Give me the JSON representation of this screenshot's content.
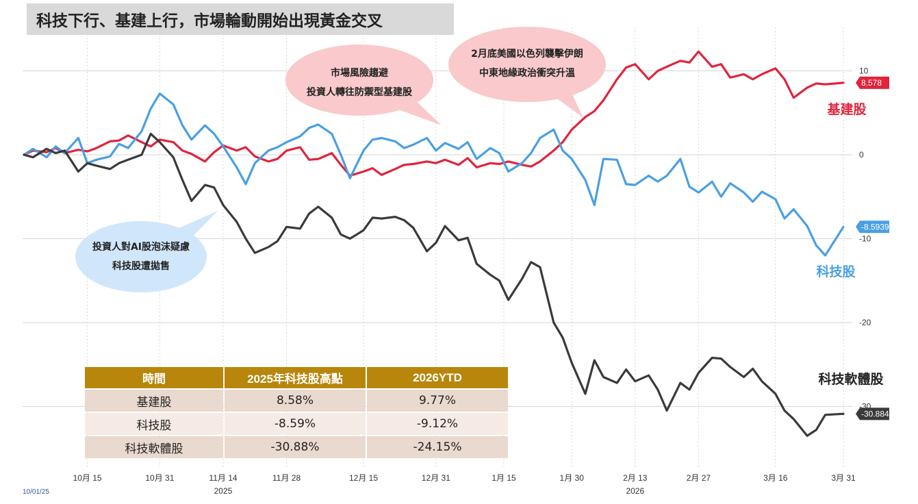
{
  "title": "科技下行、基建上行，市場輪動開始出現黃金交叉",
  "source_date": "10/01/25",
  "colors": {
    "infra": "#e0243c",
    "tech": "#4a9fe3",
    "software": "#3a3a3a",
    "grid": "#d6d6d6",
    "table_header": "#b8860b"
  },
  "annotations": {
    "market": [
      "市場風險趨避",
      "投資人轉往防禦型基建股"
    ],
    "middle_east": [
      "2月底美國以色列襲擊伊朗",
      "中東地緣政治衝突升溫"
    ],
    "ai": [
      "投資人對AI股泡沫疑慮",
      "科技股遭拋售"
    ]
  },
  "table": {
    "headers": [
      "時間",
      "2025年科技股高點",
      "2026YTD"
    ],
    "rows": [
      [
        "基建股",
        "8.58%",
        "9.77%"
      ],
      [
        "科技股",
        "-8.59%",
        "-9.12%"
      ],
      [
        "科技軟體股",
        "-30.88%",
        "-24.15%"
      ]
    ]
  },
  "chart_data": {
    "type": "line",
    "title": "科技下行、基建上行，市場輪動開始出現黃金交叉",
    "ylim": [
      -38,
      18
    ],
    "y_ticks": [
      10,
      0,
      -10,
      -20,
      -30
    ],
    "x_tick_labels": [
      {
        "date": "2025-10-15",
        "label": "10月 15",
        "year": ""
      },
      {
        "date": "2025-10-31",
        "label": "10月 31",
        "year": ""
      },
      {
        "date": "2025-11-14",
        "label": "11月 14",
        "year": "2025"
      },
      {
        "date": "2025-11-28",
        "label": "11月 28",
        "year": ""
      },
      {
        "date": "2025-12-15",
        "label": "12月 15",
        "year": ""
      },
      {
        "date": "2025-12-31",
        "label": "12月 31",
        "year": ""
      },
      {
        "date": "2026-01-15",
        "label": "1月 15",
        "year": ""
      },
      {
        "date": "2026-01-30",
        "label": "1月 30",
        "year": ""
      },
      {
        "date": "2026-02-13",
        "label": "2月 13",
        "year": "2026"
      },
      {
        "date": "2026-02-27",
        "label": "2月 27",
        "year": ""
      },
      {
        "date": "2026-03-16",
        "label": "3月 16",
        "year": ""
      },
      {
        "date": "2026-03-31",
        "label": "3月 31",
        "year": ""
      }
    ],
    "series": [
      {
        "name": "基建股",
        "color": "#e0243c",
        "last_label": "8.578",
        "points": [
          [
            "2025-10-01",
            0
          ],
          [
            "2025-10-03",
            0.5
          ],
          [
            "2025-10-06",
            0.3
          ],
          [
            "2025-10-08",
            0.8
          ],
          [
            "2025-10-10",
            0.2
          ],
          [
            "2025-10-13",
            0.6
          ],
          [
            "2025-10-15",
            0.4
          ],
          [
            "2025-10-17",
            0.8
          ],
          [
            "2025-10-20",
            1.6
          ],
          [
            "2025-10-22",
            1.7
          ],
          [
            "2025-10-24",
            2.3
          ],
          [
            "2025-10-27",
            1.5
          ],
          [
            "2025-10-29",
            1.0
          ],
          [
            "2025-10-31",
            1.8
          ],
          [
            "2025-11-03",
            1.5
          ],
          [
            "2025-11-05",
            0.5
          ],
          [
            "2025-11-07",
            0.1
          ],
          [
            "2025-11-10",
            -0.8
          ],
          [
            "2025-11-12",
            0.3
          ],
          [
            "2025-11-14",
            1.1
          ],
          [
            "2025-11-17",
            0.5
          ],
          [
            "2025-11-19",
            0.9
          ],
          [
            "2025-11-21",
            -0.2
          ],
          [
            "2025-11-24",
            -0.8
          ],
          [
            "2025-11-26",
            -0.5
          ],
          [
            "2025-11-28",
            0.5
          ],
          [
            "2025-12-01",
            0.9
          ],
          [
            "2025-12-03",
            -0.6
          ],
          [
            "2025-12-05",
            -0.5
          ],
          [
            "2025-12-08",
            0.2
          ],
          [
            "2025-12-10",
            -1.2
          ],
          [
            "2025-12-12",
            -2.5
          ],
          [
            "2025-12-15",
            -2.0
          ],
          [
            "2025-12-17",
            -1.6
          ],
          [
            "2025-12-19",
            -2.4
          ],
          [
            "2025-12-22",
            -1.7
          ],
          [
            "2025-12-24",
            -1.2
          ],
          [
            "2025-12-26",
            -1.1
          ],
          [
            "2025-12-29",
            -0.8
          ],
          [
            "2025-12-31",
            -1.0
          ],
          [
            "2026-01-02",
            -0.6
          ],
          [
            "2026-01-05",
            -1.2
          ],
          [
            "2026-01-07",
            -0.4
          ],
          [
            "2026-01-09",
            -1.5
          ],
          [
            "2026-01-12",
            -1.0
          ],
          [
            "2026-01-14",
            -1.1
          ],
          [
            "2026-01-16",
            -0.8
          ],
          [
            "2026-01-19",
            -1.2
          ],
          [
            "2026-01-21",
            -1.4
          ],
          [
            "2026-01-23",
            -0.8
          ],
          [
            "2026-01-26",
            0.5
          ],
          [
            "2026-01-28",
            1.5
          ],
          [
            "2026-01-30",
            3.0
          ],
          [
            "2026-02-02",
            4.5
          ],
          [
            "2026-02-04",
            5.2
          ],
          [
            "2026-02-06",
            6.5
          ],
          [
            "2026-02-09",
            9.0
          ],
          [
            "2026-02-11",
            10.4
          ],
          [
            "2026-02-13",
            10.8
          ],
          [
            "2026-02-16",
            9.0
          ],
          [
            "2026-02-18",
            10.0
          ],
          [
            "2026-02-20",
            10.5
          ],
          [
            "2026-02-23",
            11.2
          ],
          [
            "2026-02-25",
            11.0
          ],
          [
            "2026-02-27",
            12.3
          ],
          [
            "2026-03-02",
            10.5
          ],
          [
            "2026-03-04",
            10.8
          ],
          [
            "2026-03-06",
            9.2
          ],
          [
            "2026-03-09",
            9.6
          ],
          [
            "2026-03-11",
            9.0
          ],
          [
            "2026-03-13",
            9.6
          ],
          [
            "2026-03-16",
            10.3
          ],
          [
            "2026-03-18",
            9.0
          ],
          [
            "2026-03-20",
            6.8
          ],
          [
            "2026-03-23",
            8.0
          ],
          [
            "2026-03-25",
            8.5
          ],
          [
            "2026-03-27",
            8.4
          ],
          [
            "2026-03-31",
            8.578
          ]
        ]
      },
      {
        "name": "科技股",
        "color": "#4a9fe3",
        "last_label": "-8.5939",
        "points": [
          [
            "2025-10-01",
            0
          ],
          [
            "2025-10-03",
            0.7
          ],
          [
            "2025-10-06",
            -0.3
          ],
          [
            "2025-10-08",
            1.0
          ],
          [
            "2025-10-10",
            0.2
          ],
          [
            "2025-10-13",
            2.0
          ],
          [
            "2025-10-15",
            -1.0
          ],
          [
            "2025-10-17",
            -0.6
          ],
          [
            "2025-10-20",
            -0.2
          ],
          [
            "2025-10-22",
            1.3
          ],
          [
            "2025-10-24",
            0.8
          ],
          [
            "2025-10-27",
            2.8
          ],
          [
            "2025-10-29",
            5.5
          ],
          [
            "2025-10-31",
            7.3
          ],
          [
            "2025-11-03",
            6.0
          ],
          [
            "2025-11-05",
            3.5
          ],
          [
            "2025-11-07",
            1.8
          ],
          [
            "2025-11-10",
            3.5
          ],
          [
            "2025-11-12",
            2.5
          ],
          [
            "2025-11-14",
            1.0
          ],
          [
            "2025-11-17",
            -1.5
          ],
          [
            "2025-11-19",
            -3.5
          ],
          [
            "2025-11-21",
            -1.0
          ],
          [
            "2025-11-24",
            0.5
          ],
          [
            "2025-11-26",
            0.9
          ],
          [
            "2025-11-28",
            1.5
          ],
          [
            "2025-12-01",
            2.2
          ],
          [
            "2025-12-03",
            3.2
          ],
          [
            "2025-12-05",
            3.6
          ],
          [
            "2025-12-08",
            2.5
          ],
          [
            "2025-12-10",
            0.0
          ],
          [
            "2025-12-12",
            -2.8
          ],
          [
            "2025-12-15",
            0.5
          ],
          [
            "2025-12-17",
            1.8
          ],
          [
            "2025-12-19",
            2.0
          ],
          [
            "2025-12-22",
            1.6
          ],
          [
            "2025-12-24",
            0.8
          ],
          [
            "2025-12-26",
            1.2
          ],
          [
            "2025-12-29",
            2.0
          ],
          [
            "2025-12-31",
            0.5
          ],
          [
            "2026-01-02",
            1.4
          ],
          [
            "2026-01-05",
            0.7
          ],
          [
            "2026-01-07",
            1.5
          ],
          [
            "2026-01-09",
            -0.5
          ],
          [
            "2026-01-12",
            0.8
          ],
          [
            "2026-01-14",
            0.2
          ],
          [
            "2026-01-16",
            -2.0
          ],
          [
            "2026-01-19",
            -1.0
          ],
          [
            "2026-01-21",
            0.2
          ],
          [
            "2026-01-23",
            2.0
          ],
          [
            "2026-01-26",
            3.0
          ],
          [
            "2026-01-28",
            0.5
          ],
          [
            "2026-01-30",
            -0.5
          ],
          [
            "2026-02-02",
            -3.0
          ],
          [
            "2026-02-04",
            -6.0
          ],
          [
            "2026-02-06",
            -0.5
          ],
          [
            "2026-02-09",
            -0.6
          ],
          [
            "2026-02-11",
            -3.5
          ],
          [
            "2026-02-13",
            -3.6
          ],
          [
            "2026-02-16",
            -2.5
          ],
          [
            "2026-02-18",
            -3.2
          ],
          [
            "2026-02-20",
            -2.5
          ],
          [
            "2026-02-23",
            -0.5
          ],
          [
            "2026-02-25",
            -3.8
          ],
          [
            "2026-02-27",
            -4.5
          ],
          [
            "2026-03-02",
            -3.2
          ],
          [
            "2026-03-04",
            -5.0
          ],
          [
            "2026-03-06",
            -3.4
          ],
          [
            "2026-03-09",
            -4.5
          ],
          [
            "2026-03-11",
            -5.6
          ],
          [
            "2026-03-13",
            -4.4
          ],
          [
            "2026-03-16",
            -5.3
          ],
          [
            "2026-03-18",
            -7.6
          ],
          [
            "2026-03-20",
            -6.5
          ],
          [
            "2026-03-23",
            -8.5
          ],
          [
            "2026-03-25",
            -10.8
          ],
          [
            "2026-03-27",
            -12.0
          ],
          [
            "2026-03-31",
            -8.5939
          ]
        ]
      },
      {
        "name": "科技軟體股",
        "color": "#3a3a3a",
        "last_label": "-30.884",
        "points": [
          [
            "2025-10-01",
            0
          ],
          [
            "2025-10-03",
            -0.3
          ],
          [
            "2025-10-06",
            0.7
          ],
          [
            "2025-10-08",
            0.2
          ],
          [
            "2025-10-10",
            0.5
          ],
          [
            "2025-10-13",
            -2.0
          ],
          [
            "2025-10-15",
            -1.0
          ],
          [
            "2025-10-17",
            -1.3
          ],
          [
            "2025-10-20",
            -1.7
          ],
          [
            "2025-10-22",
            -1.0
          ],
          [
            "2025-10-24",
            -0.6
          ],
          [
            "2025-10-27",
            0.0
          ],
          [
            "2025-10-29",
            2.5
          ],
          [
            "2025-10-31",
            1.5
          ],
          [
            "2025-11-03",
            -0.3
          ],
          [
            "2025-11-05",
            -3.0
          ],
          [
            "2025-11-07",
            -5.5
          ],
          [
            "2025-11-10",
            -3.6
          ],
          [
            "2025-11-12",
            -3.9
          ],
          [
            "2025-11-14",
            -6.0
          ],
          [
            "2025-11-17",
            -8.0
          ],
          [
            "2025-11-19",
            -10.0
          ],
          [
            "2025-11-21",
            -11.7
          ],
          [
            "2025-11-24",
            -11.0
          ],
          [
            "2025-11-26",
            -10.3
          ],
          [
            "2025-11-28",
            -8.6
          ],
          [
            "2025-12-01",
            -8.8
          ],
          [
            "2025-12-03",
            -7.0
          ],
          [
            "2025-12-05",
            -6.2
          ],
          [
            "2025-12-08",
            -7.5
          ],
          [
            "2025-12-10",
            -9.5
          ],
          [
            "2025-12-12",
            -10.0
          ],
          [
            "2025-12-15",
            -9.0
          ],
          [
            "2025-12-17",
            -7.5
          ],
          [
            "2025-12-19",
            -7.6
          ],
          [
            "2025-12-22",
            -7.4
          ],
          [
            "2025-12-24",
            -7.8
          ],
          [
            "2025-12-26",
            -8.7
          ],
          [
            "2025-12-29",
            -11.5
          ],
          [
            "2025-12-31",
            -10.5
          ],
          [
            "2026-01-02",
            -8.5
          ],
          [
            "2026-01-05",
            -10.2
          ],
          [
            "2026-01-07",
            -9.9
          ],
          [
            "2026-01-09",
            -13.0
          ],
          [
            "2026-01-12",
            -14.3
          ],
          [
            "2026-01-14",
            -15.0
          ],
          [
            "2026-01-16",
            -17.3
          ],
          [
            "2026-01-19",
            -14.8
          ],
          [
            "2026-01-21",
            -12.8
          ],
          [
            "2026-01-23",
            -13.4
          ],
          [
            "2026-01-26",
            -20.0
          ],
          [
            "2026-01-28",
            -21.8
          ],
          [
            "2026-01-30",
            -24.8
          ],
          [
            "2026-02-02",
            -28.5
          ],
          [
            "2026-02-04",
            -24.5
          ],
          [
            "2026-02-06",
            -26.5
          ],
          [
            "2026-02-09",
            -27.2
          ],
          [
            "2026-02-11",
            -25.6
          ],
          [
            "2026-02-13",
            -27.0
          ],
          [
            "2026-02-16",
            -26.3
          ],
          [
            "2026-02-18",
            -28.0
          ],
          [
            "2026-02-20",
            -30.5
          ],
          [
            "2026-02-23",
            -27.2
          ],
          [
            "2026-02-25",
            -28.0
          ],
          [
            "2026-02-27",
            -26.0
          ],
          [
            "2026-03-02",
            -24.2
          ],
          [
            "2026-03-04",
            -24.3
          ],
          [
            "2026-03-06",
            -25.3
          ],
          [
            "2026-03-09",
            -26.5
          ],
          [
            "2026-03-11",
            -25.5
          ],
          [
            "2026-03-13",
            -27.0
          ],
          [
            "2026-03-16",
            -28.5
          ],
          [
            "2026-03-18",
            -30.5
          ],
          [
            "2026-03-20",
            -31.5
          ],
          [
            "2026-03-23",
            -33.5
          ],
          [
            "2026-03-25",
            -32.8
          ],
          [
            "2026-03-27",
            -31.0
          ],
          [
            "2026-03-31",
            -30.884
          ]
        ]
      }
    ]
  }
}
